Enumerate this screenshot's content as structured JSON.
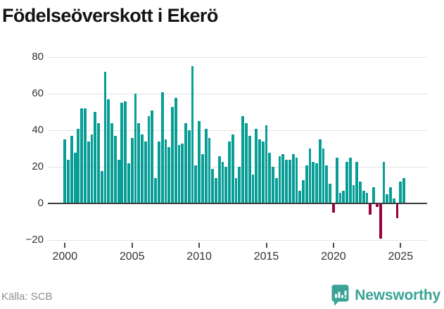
{
  "header": {
    "title": "Födelseöverskott i Ekerö"
  },
  "footer": {
    "source_label": "Källa: SCB",
    "brand_name": "Newsworthy"
  },
  "colors": {
    "bar_positive": "#089e96",
    "bar_negative": "#99003d",
    "gridline": "#e2e2e2",
    "zero_axis": "#3c3c3c",
    "tick_label": "#333333",
    "title_text": "#131313",
    "source_text": "#8d8d96",
    "brand_teal": "#3aa396"
  },
  "chart_data": {
    "type": "bar",
    "title": "Födelseöverskott i Ekerö",
    "xlabel": "",
    "ylabel": "",
    "x_unit": "quarter",
    "x_start_year": 2000,
    "x_tick_labels": [
      "2000",
      "2005",
      "2010",
      "2015",
      "2020",
      "2025"
    ],
    "y_ticks": [
      80,
      60,
      40,
      20,
      0,
      -20
    ],
    "ylim": [
      -20,
      80
    ],
    "grid": true,
    "legend": "none",
    "values": [
      35,
      24,
      37,
      28,
      41,
      52,
      52,
      34,
      38,
      50,
      44,
      18,
      72,
      57,
      44,
      37,
      24,
      55,
      56,
      22,
      36,
      60,
      44,
      38,
      34,
      48,
      51,
      14,
      34,
      61,
      35,
      31,
      53,
      58,
      32,
      33,
      44,
      40,
      75,
      21,
      45,
      27,
      41,
      36,
      19,
      14,
      26,
      23,
      20,
      34,
      38,
      14,
      20,
      48,
      44,
      37,
      16,
      41,
      35,
      34,
      43,
      28,
      20,
      14,
      26,
      27,
      24,
      24,
      27,
      25,
      7,
      13,
      21,
      30,
      23,
      22,
      35,
      30,
      21,
      11,
      -5,
      25,
      6,
      7,
      23,
      25,
      10,
      23,
      12,
      7,
      6,
      -6,
      9,
      -2,
      -19,
      23,
      5,
      9,
      3,
      -8,
      12,
      14
    ]
  }
}
